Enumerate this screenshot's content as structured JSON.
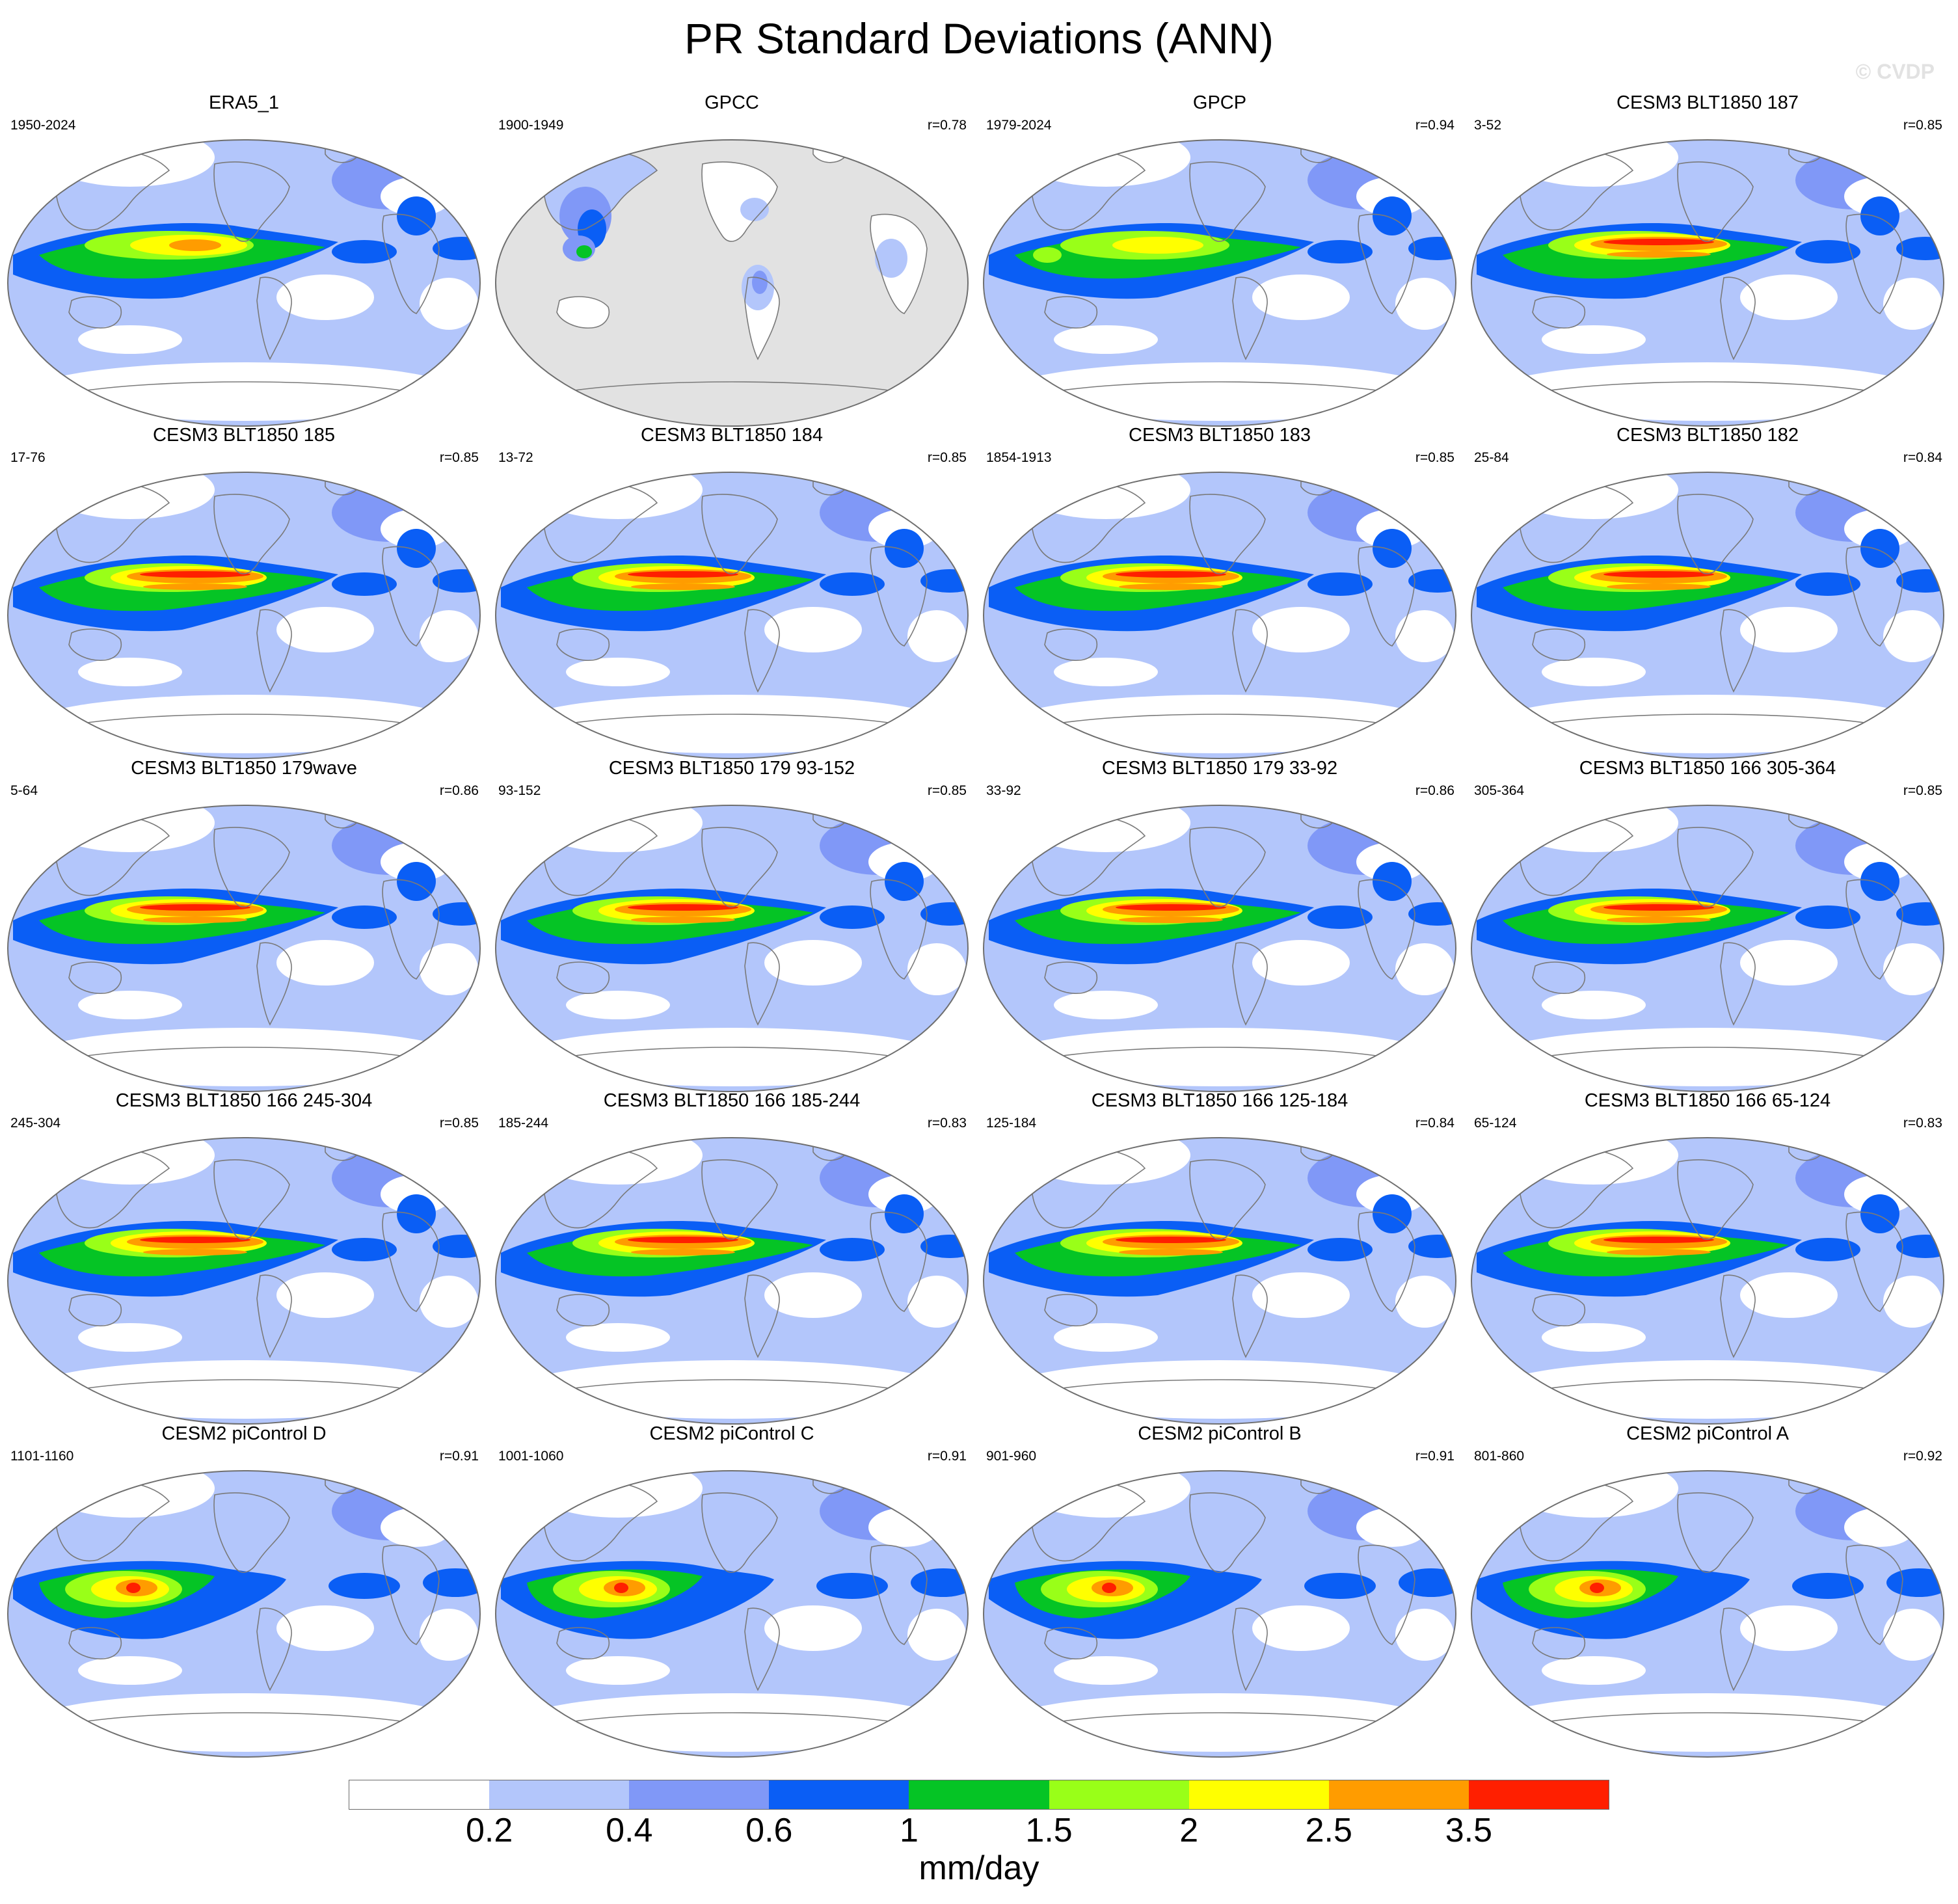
{
  "title": "PR Standard Deviations (ANN)",
  "watermark": "© CVDP",
  "chart_data": {
    "type": "heatmap",
    "title": "PR Standard Deviations (ANN)",
    "projection": "Robinson",
    "grid": false,
    "colorbar": {
      "placement": "bottom",
      "units": "mm/day",
      "levels": [
        "0.2",
        "0.4",
        "0.6",
        "1",
        "1.5",
        "2",
        "2.5",
        "3.5"
      ],
      "colors": [
        "#ffffff",
        "#b3c6fb",
        "#8098f7",
        "#0a5ef5",
        "#05c425",
        "#99ff18",
        "#ffff00",
        "#ff9c00",
        "#ff1f00"
      ]
    },
    "panels": [
      {
        "title": "ERA5_1",
        "years": "1950-2024",
        "r": "",
        "style": "era5"
      },
      {
        "title": "GPCC",
        "years": "1900-1949",
        "r": "r=0.78",
        "style": "gpcc"
      },
      {
        "title": "GPCP",
        "years": "1979-2024",
        "r": "r=0.94",
        "style": "gpcp"
      },
      {
        "title": "CESM3 BLT1850 187",
        "years": "3-52",
        "r": "r=0.85",
        "style": "cesm3"
      },
      {
        "title": "CESM3 BLT1850 185",
        "years": "17-76",
        "r": "r=0.85",
        "style": "cesm3"
      },
      {
        "title": "CESM3 BLT1850 184",
        "years": "13-72",
        "r": "r=0.85",
        "style": "cesm3"
      },
      {
        "title": "CESM3 BLT1850 183",
        "years": "1854-1913",
        "r": "r=0.85",
        "style": "cesm3"
      },
      {
        "title": "CESM3 BLT1850 182",
        "years": "25-84",
        "r": "r=0.84",
        "style": "cesm3"
      },
      {
        "title": "CESM3 BLT1850 179wave",
        "years": "5-64",
        "r": "r=0.86",
        "style": "cesm3"
      },
      {
        "title": "CESM3 BLT1850 179 93-152",
        "years": "93-152",
        "r": "r=0.85",
        "style": "cesm3"
      },
      {
        "title": "CESM3 BLT1850 179 33-92",
        "years": "33-92",
        "r": "r=0.86",
        "style": "cesm3"
      },
      {
        "title": "CESM3 BLT1850 166 305-364",
        "years": "305-364",
        "r": "r=0.85",
        "style": "cesm3"
      },
      {
        "title": "CESM3 BLT1850 166 245-304",
        "years": "245-304",
        "r": "r=0.85",
        "style": "cesm3"
      },
      {
        "title": "CESM3 BLT1850 166 185-244",
        "years": "185-244",
        "r": "r=0.83",
        "style": "cesm3"
      },
      {
        "title": "CESM3 BLT1850 166 125-184",
        "years": "125-184",
        "r": "r=0.84",
        "style": "cesm3"
      },
      {
        "title": "CESM3 BLT1850 166 65-124",
        "years": "65-124",
        "r": "r=0.83",
        "style": "cesm3"
      },
      {
        "title": "CESM2 piControl D",
        "years": "1101-1160",
        "r": "r=0.91",
        "style": "cesm2"
      },
      {
        "title": "CESM2 piControl C",
        "years": "1001-1060",
        "r": "r=0.91",
        "style": "cesm2"
      },
      {
        "title": "CESM2 piControl B",
        "years": "901-960",
        "r": "r=0.91",
        "style": "cesm2"
      },
      {
        "title": "CESM2 piControl A",
        "years": "801-860",
        "r": "r=0.92",
        "style": "cesm2"
      }
    ]
  }
}
